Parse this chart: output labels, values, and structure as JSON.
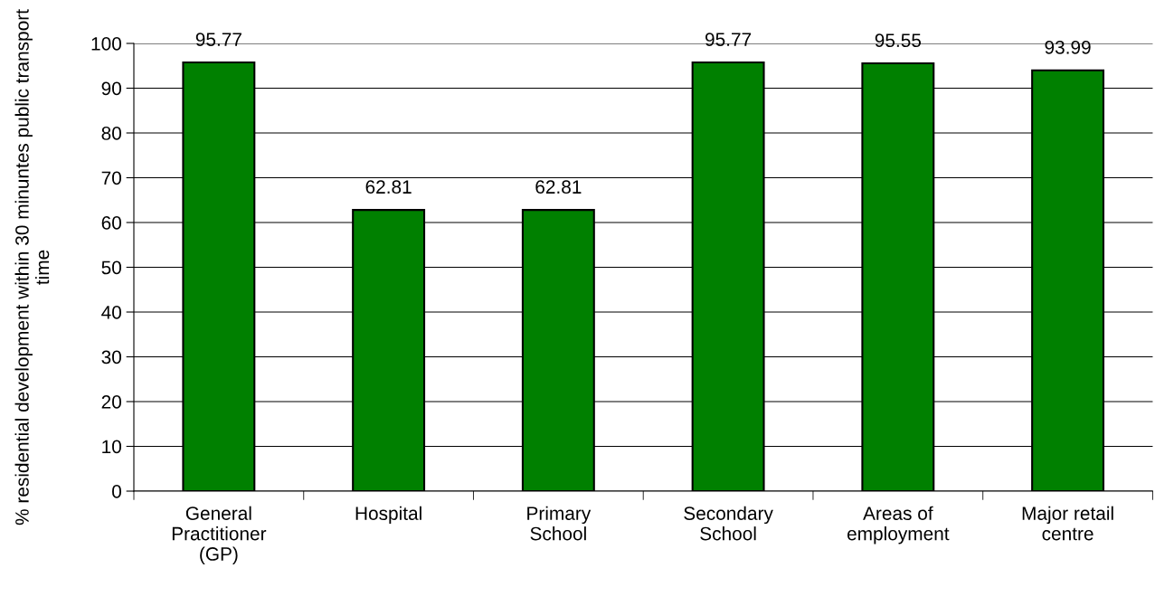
{
  "chart_data": {
    "type": "bar",
    "ylabel": "% residential development within 30 minuntes public transport time",
    "categories": [
      "General\nPractitioner\n(GP)",
      "Hospital",
      "Primary\nSchool",
      "Secondary\nSchool",
      "Areas of\nemployment",
      "Major retail\ncentre"
    ],
    "values": [
      95.77,
      62.81,
      62.81,
      95.77,
      95.55,
      93.99
    ],
    "color": "#008000",
    "ylim": [
      0,
      100
    ],
    "yticks": [
      0,
      10,
      20,
      30,
      40,
      50,
      60,
      70,
      80,
      90,
      100
    ],
    "grid": "y",
    "data_labels": true,
    "legend": false
  }
}
